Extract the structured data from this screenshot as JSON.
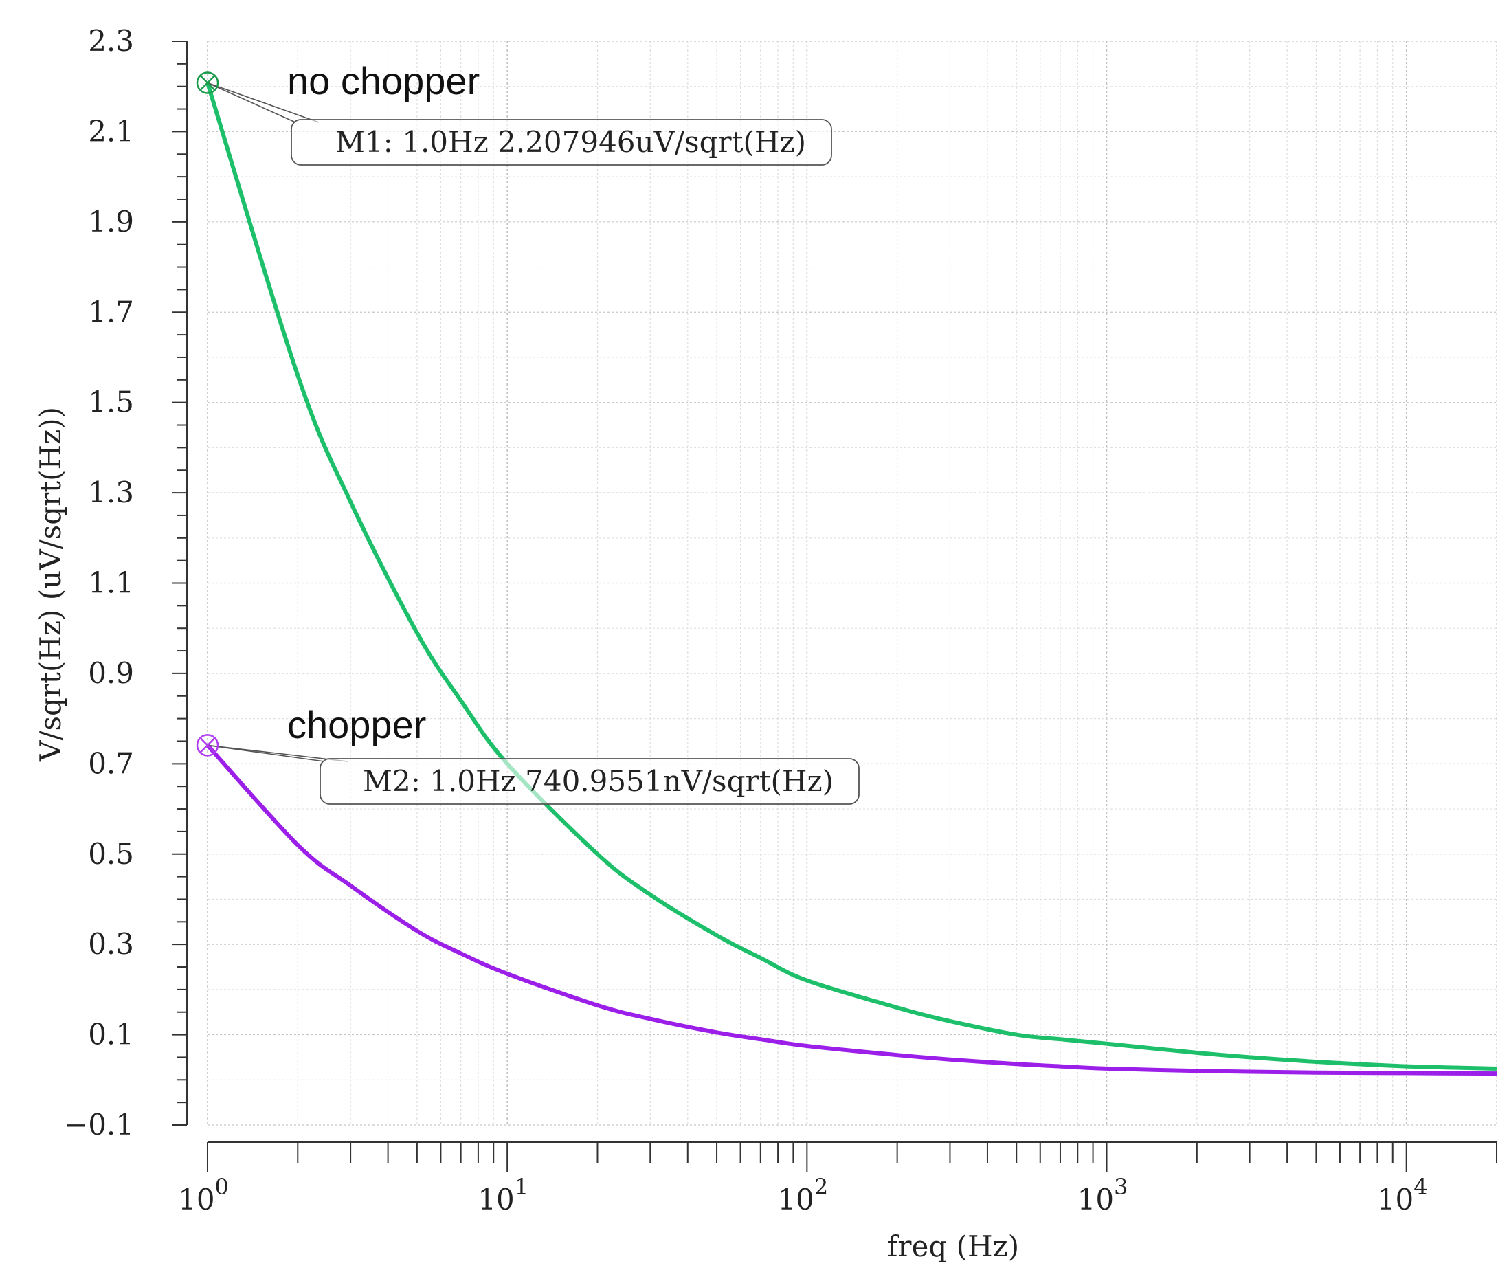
{
  "chart_data": {
    "type": "line",
    "title": "",
    "xlabel": "freq (Hz)",
    "ylabel": "V/sqrt(Hz) (uV/sqrt(Hz))",
    "xscale": "log",
    "xlim": [
      1,
      20000
    ],
    "ylim": [
      -0.1,
      2.3
    ],
    "grid": true,
    "x_ticks": [
      {
        "value": 1,
        "base": "10",
        "exp": "0"
      },
      {
        "value": 10,
        "base": "10",
        "exp": "1"
      },
      {
        "value": 100,
        "base": "10",
        "exp": "2"
      },
      {
        "value": 1000,
        "base": "10",
        "exp": "3"
      },
      {
        "value": 10000,
        "base": "10",
        "exp": "4"
      }
    ],
    "y_ticks": [
      {
        "value": 2.3,
        "label": "2.3"
      },
      {
        "value": 2.1,
        "label": "2.1"
      },
      {
        "value": 1.9,
        "label": "1.9"
      },
      {
        "value": 1.7,
        "label": "1.7"
      },
      {
        "value": 1.5,
        "label": "1.5"
      },
      {
        "value": 1.3,
        "label": "1.3"
      },
      {
        "value": 1.1,
        "label": "1.1"
      },
      {
        "value": 0.9,
        "label": "0.9"
      },
      {
        "value": 0.7,
        "label": "0.7"
      },
      {
        "value": 0.5,
        "label": "0.5"
      },
      {
        "value": 0.3,
        "label": "0.3"
      },
      {
        "value": 0.1,
        "label": "0.1"
      },
      {
        "value": -0.1,
        "label": "−0.1"
      }
    ],
    "series": [
      {
        "name": "no chopper",
        "color": "#1dbf6a",
        "x": [
          1,
          2,
          3,
          5,
          7,
          10,
          20,
          30,
          50,
          70,
          100,
          200,
          300,
          500,
          700,
          1000,
          2000,
          3000,
          5000,
          10000,
          20000
        ],
        "values": [
          2.208,
          1.56,
          1.28,
          0.99,
          0.84,
          0.7,
          0.5,
          0.41,
          0.32,
          0.27,
          0.22,
          0.16,
          0.13,
          0.1,
          0.09,
          0.08,
          0.06,
          0.05,
          0.04,
          0.03,
          0.025
        ]
      },
      {
        "name": "chopper",
        "color": "#9b1fe8",
        "x": [
          1,
          2,
          3,
          5,
          7,
          10,
          20,
          30,
          50,
          70,
          100,
          200,
          300,
          500,
          700,
          1000,
          2000,
          3000,
          5000,
          10000,
          20000
        ],
        "values": [
          0.741,
          0.52,
          0.43,
          0.33,
          0.28,
          0.235,
          0.165,
          0.135,
          0.105,
          0.09,
          0.075,
          0.055,
          0.045,
          0.035,
          0.03,
          0.025,
          0.02,
          0.018,
          0.016,
          0.015,
          0.014
        ]
      }
    ],
    "markers": [
      {
        "id": "M1",
        "series": "no chopper",
        "x": 1,
        "y": 2.207946,
        "text": "M1: 1.0Hz 2.207946uV/sqrt(Hz)",
        "color": "#1a9b4a"
      },
      {
        "id": "M2",
        "series": "chopper",
        "x": 1,
        "y": 0.7409551,
        "text": "M2: 1.0Hz 740.9551nV/sqrt(Hz)",
        "color": "#b03cf0"
      }
    ]
  }
}
